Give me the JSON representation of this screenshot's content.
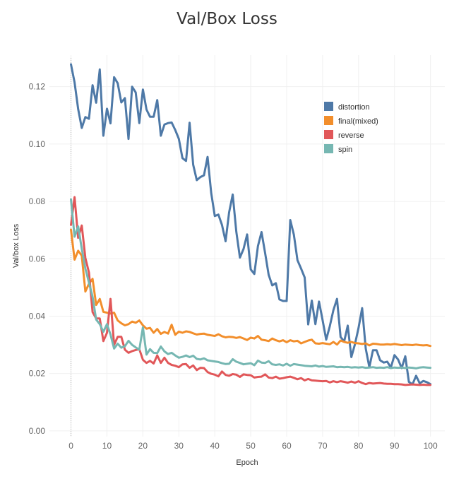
{
  "chart_data": {
    "type": "line",
    "title": "Val/Box Loss",
    "xlabel": "Epoch",
    "ylabel": "Val/box Loss",
    "xlim": [
      -6,
      104
    ],
    "ylim": [
      -0.002,
      0.131
    ],
    "x_ticks": [
      0,
      10,
      20,
      30,
      40,
      50,
      60,
      70,
      80,
      90,
      100
    ],
    "y_ticks": [
      0.0,
      0.02,
      0.04,
      0.06,
      0.08,
      0.1,
      0.12
    ],
    "y_tick_labels": [
      "0.00",
      "0.02",
      "0.04",
      "0.06",
      "0.08",
      "0.10",
      "0.12"
    ],
    "grid": true,
    "legend_position": "top-right",
    "series": [
      {
        "name": "distortion",
        "color": "#4e79a7",
        "values": [
          0.1278,
          0.1215,
          0.1122,
          0.1056,
          0.1094,
          0.1088,
          0.1205,
          0.1144,
          0.126,
          0.1029,
          0.1123,
          0.1072,
          0.1233,
          0.1212,
          0.1145,
          0.116,
          0.1018,
          0.12,
          0.118,
          0.1073,
          0.119,
          0.112,
          0.1095,
          0.1095,
          0.1153,
          0.1029,
          0.1068,
          0.1073,
          0.1075,
          0.1049,
          0.1018,
          0.0951,
          0.0941,
          0.1074,
          0.0928,
          0.0874,
          0.0885,
          0.0891,
          0.0955,
          0.083,
          0.0749,
          0.0754,
          0.0718,
          0.0661,
          0.0762,
          0.0824,
          0.0694,
          0.0604,
          0.0634,
          0.0685,
          0.0563,
          0.0547,
          0.0644,
          0.0693,
          0.062,
          0.0544,
          0.0507,
          0.0515,
          0.0458,
          0.0453,
          0.0453,
          0.0735,
          0.0684,
          0.0595,
          0.0566,
          0.0535,
          0.0371,
          0.0454,
          0.0372,
          0.0451,
          0.0386,
          0.0318,
          0.0365,
          0.0421,
          0.046,
          0.0327,
          0.0312,
          0.0367,
          0.0257,
          0.0302,
          0.0359,
          0.0428,
          0.0287,
          0.0222,
          0.0281,
          0.0281,
          0.0246,
          0.0238,
          0.0241,
          0.0221,
          0.0264,
          0.0249,
          0.0219,
          0.026,
          0.0171,
          0.0162,
          0.0192,
          0.0166,
          0.0174,
          0.017,
          0.0163
        ]
      },
      {
        "name": "final(mixed)",
        "color": "#f28e2b",
        "values": [
          0.0702,
          0.0597,
          0.0628,
          0.0611,
          0.0486,
          0.0513,
          0.053,
          0.0439,
          0.046,
          0.0415,
          0.0412,
          0.0409,
          0.0412,
          0.0385,
          0.0375,
          0.0368,
          0.0372,
          0.0381,
          0.0377,
          0.0385,
          0.0368,
          0.0356,
          0.0359,
          0.0342,
          0.0355,
          0.0338,
          0.0345,
          0.0339,
          0.037,
          0.0335,
          0.0346,
          0.0342,
          0.0347,
          0.0345,
          0.034,
          0.0336,
          0.0338,
          0.0339,
          0.0335,
          0.0333,
          0.0331,
          0.0337,
          0.033,
          0.0326,
          0.0328,
          0.0327,
          0.0324,
          0.0327,
          0.0322,
          0.0317,
          0.0325,
          0.0322,
          0.0331,
          0.0318,
          0.0316,
          0.0313,
          0.0322,
          0.0316,
          0.0312,
          0.0316,
          0.0309,
          0.0316,
          0.0312,
          0.0314,
          0.0305,
          0.031,
          0.0315,
          0.0318,
          0.0305,
          0.0304,
          0.0306,
          0.0304,
          0.0302,
          0.031,
          0.0301,
          0.0315,
          0.031,
          0.0307,
          0.031,
          0.0306,
          0.0305,
          0.0303,
          0.0305,
          0.0298,
          0.0304,
          0.0303,
          0.0301,
          0.0301,
          0.0302,
          0.0301,
          0.0303,
          0.0301,
          0.0299,
          0.0301,
          0.03,
          0.0299,
          0.0301,
          0.0299,
          0.0298,
          0.0299,
          0.0296
        ]
      },
      {
        "name": "reverse",
        "color": "#e15759",
        "values": [
          0.0718,
          0.0815,
          0.0673,
          0.0716,
          0.0603,
          0.0552,
          0.0414,
          0.0392,
          0.0392,
          0.0313,
          0.0342,
          0.046,
          0.03,
          0.0328,
          0.0328,
          0.0283,
          0.0272,
          0.0278,
          0.0282,
          0.0285,
          0.0248,
          0.0237,
          0.0244,
          0.0235,
          0.0263,
          0.0237,
          0.0255,
          0.0237,
          0.023,
          0.0227,
          0.0222,
          0.0232,
          0.0233,
          0.022,
          0.0228,
          0.0212,
          0.022,
          0.0219,
          0.0205,
          0.0199,
          0.0196,
          0.019,
          0.0207,
          0.0195,
          0.0192,
          0.0198,
          0.0196,
          0.0188,
          0.0197,
          0.0195,
          0.0194,
          0.0186,
          0.0188,
          0.0189,
          0.0197,
          0.0186,
          0.0184,
          0.0189,
          0.0182,
          0.0184,
          0.0187,
          0.0189,
          0.0185,
          0.018,
          0.0184,
          0.0176,
          0.0181,
          0.0176,
          0.0175,
          0.0174,
          0.0173,
          0.0174,
          0.0169,
          0.0173,
          0.017,
          0.0173,
          0.0171,
          0.0168,
          0.0172,
          0.0168,
          0.0173,
          0.0167,
          0.0163,
          0.0167,
          0.0165,
          0.0166,
          0.0167,
          0.0165,
          0.0164,
          0.0164,
          0.0163,
          0.0163,
          0.0162,
          0.016,
          0.0161,
          0.0162,
          0.0161,
          0.016,
          0.0161,
          0.016,
          0.016
        ]
      },
      {
        "name": "spin",
        "color": "#76b7b2",
        "values": [
          0.0807,
          0.0677,
          0.0713,
          0.0635,
          0.0566,
          0.0517,
          0.0468,
          0.0388,
          0.0372,
          0.0345,
          0.0372,
          0.0336,
          0.0287,
          0.0304,
          0.029,
          0.0295,
          0.0314,
          0.03,
          0.0291,
          0.0283,
          0.0361,
          0.0266,
          0.0285,
          0.0272,
          0.0271,
          0.0294,
          0.0277,
          0.0268,
          0.0272,
          0.0263,
          0.0255,
          0.0258,
          0.0263,
          0.0257,
          0.0262,
          0.0251,
          0.0249,
          0.0253,
          0.0246,
          0.0244,
          0.0242,
          0.024,
          0.0236,
          0.0233,
          0.0234,
          0.025,
          0.0241,
          0.0237,
          0.0232,
          0.0234,
          0.0236,
          0.0229,
          0.0245,
          0.0238,
          0.0237,
          0.0243,
          0.0232,
          0.023,
          0.0232,
          0.0228,
          0.0234,
          0.0227,
          0.0233,
          0.0231,
          0.0229,
          0.0227,
          0.0226,
          0.0225,
          0.0228,
          0.0224,
          0.0226,
          0.0223,
          0.0224,
          0.0225,
          0.0222,
          0.0223,
          0.0222,
          0.0223,
          0.0221,
          0.0222,
          0.0221,
          0.0222,
          0.022,
          0.0221,
          0.0222,
          0.022,
          0.0221,
          0.022,
          0.0222,
          0.0219,
          0.0221,
          0.022,
          0.0221,
          0.0219,
          0.0221,
          0.022,
          0.0218,
          0.0221,
          0.0222,
          0.0221,
          0.022
        ]
      }
    ]
  }
}
